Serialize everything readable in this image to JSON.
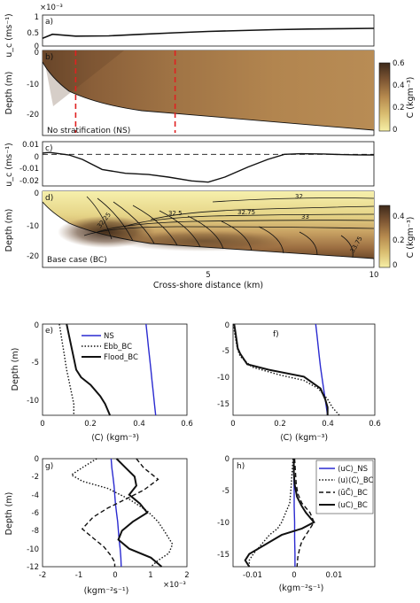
{
  "chart_data": [
    {
      "id": "a",
      "type": "line",
      "panel_label": "a)",
      "ylabel": "u_c (ms⁻¹)",
      "exponent_label": "×10⁻³",
      "yticks": [
        "1",
        "0.5",
        "0"
      ],
      "ylim": [
        0,
        1.0
      ],
      "xlim": [
        0,
        10
      ],
      "x": [
        0,
        0.3,
        1,
        2,
        3,
        4,
        5,
        6,
        7,
        8,
        9,
        10
      ],
      "y": [
        0.25,
        0.38,
        0.32,
        0.33,
        0.38,
        0.43,
        0.47,
        0.5,
        0.53,
        0.55,
        0.56,
        0.57
      ]
    },
    {
      "id": "b",
      "type": "heatmap",
      "panel_label": "b)",
      "ylabel": "Depth (m)",
      "yticks": [
        "0",
        "-10",
        "-20"
      ],
      "annotation": "No stratification (NS)",
      "colorbar_label": "C (kgm⁻³)",
      "colorbar_ticks": [
        "0.6",
        "0.4",
        "0.2",
        "0"
      ],
      "dashed_lines_x": [
        1.0,
        4.0
      ]
    },
    {
      "id": "c",
      "type": "line",
      "panel_label": "c)",
      "ylabel": "u_c (ms⁻¹)",
      "yticks": [
        "0.01",
        "0",
        "-0.01",
        "-0.02"
      ],
      "ylim": [
        -0.025,
        0.01
      ],
      "xlim": [
        0,
        10
      ],
      "x": [
        0,
        0.2,
        0.5,
        0.8,
        1.2,
        1.8,
        2.5,
        3.2,
        3.8,
        4.5,
        5.0,
        5.5,
        6.2,
        6.8,
        7.3,
        7.8,
        8.5,
        9.0,
        9.5,
        10
      ],
      "y": [
        0.001,
        0.0015,
        0.0005,
        -0.0005,
        -0.004,
        -0.012,
        -0.015,
        -0.016,
        -0.018,
        -0.021,
        -0.022,
        -0.018,
        -0.01,
        -0.004,
        0.0,
        0.0005,
        0.0003,
        -0.0002,
        -0.0004,
        -0.0005
      ]
    },
    {
      "id": "d",
      "type": "heatmap",
      "panel_label": "d)",
      "ylabel": "Depth (m)",
      "xlabel": "Cross-shore distance (km)",
      "xticks": [
        "5",
        "10"
      ],
      "yticks": [
        "0",
        "-10",
        "-20"
      ],
      "annotation": "Base case (BC)",
      "colorbar_label": "C (kgm⁻³)",
      "colorbar_ticks": [
        "0.4",
        "0.2",
        "0"
      ],
      "contour_labels": [
        "32",
        "32.5",
        "32.75",
        "33",
        "32.25",
        "33.75"
      ]
    },
    {
      "id": "e",
      "type": "line",
      "panel_label": "e)",
      "xlabel": "⟨C⟩ (kgm⁻³)",
      "ylabel": "Depth (m)",
      "xlim": [
        0,
        0.6
      ],
      "ylim": [
        -12,
        0
      ],
      "xticks": [
        "0",
        "0.2",
        "0.4",
        "0.6"
      ],
      "yticks": [
        "0",
        "-5",
        "-10"
      ],
      "series": [
        {
          "name": "NS",
          "style": "solid",
          "color": "#2a2ad0",
          "x": [
            0.43,
            0.435,
            0.44,
            0.445,
            0.45,
            0.455,
            0.46,
            0.465,
            0.47
          ],
          "y": [
            0,
            -1.5,
            -3,
            -4.5,
            -6,
            -7.5,
            -9,
            -10.5,
            -12
          ]
        },
        {
          "name": "Ebb_BC",
          "style": "dotted",
          "color": "#111111",
          "x": [
            0.07,
            0.075,
            0.08,
            0.085,
            0.09,
            0.095,
            0.1,
            0.11,
            0.12,
            0.13,
            0.13
          ],
          "y": [
            0,
            -1,
            -2,
            -3,
            -4,
            -5,
            -6,
            -7.5,
            -9,
            -10.5,
            -12
          ]
        },
        {
          "name": "Flood_BC",
          "style": "solid-thick",
          "color": "#111111",
          "x": [
            0.1,
            0.11,
            0.12,
            0.13,
            0.14,
            0.16,
            0.2,
            0.24,
            0.26,
            0.28
          ],
          "y": [
            0,
            -1.5,
            -3,
            -4.5,
            -6,
            -7,
            -8,
            -9.5,
            -10.5,
            -12
          ]
        }
      ]
    },
    {
      "id": "f",
      "type": "line",
      "panel_label": "f)",
      "xlabel": "⟨C⟩ (kgm⁻³)",
      "xlim": [
        0,
        0.6
      ],
      "ylim": [
        -17,
        0
      ],
      "xticks": [
        "0",
        "0.2",
        "0.4",
        "0.6"
      ],
      "yticks": [
        "0",
        "-5",
        "-10",
        "-15"
      ],
      "series": [
        {
          "name": "NS",
          "style": "solid",
          "color": "#2a2ad0",
          "x": [
            0.35,
            0.355,
            0.36,
            0.365,
            0.37,
            0.38,
            0.39,
            0.4
          ],
          "y": [
            0,
            -2,
            -4,
            -6,
            -8,
            -11,
            -14,
            -17
          ]
        },
        {
          "name": "Ebb_BC",
          "style": "dotted",
          "color": "#111111",
          "x": [
            0.002,
            0.006,
            0.012,
            0.018,
            0.03,
            0.08,
            0.2,
            0.3,
            0.36,
            0.4,
            0.42,
            0.45
          ],
          "y": [
            0,
            -1.5,
            -3,
            -4.5,
            -6,
            -8,
            -9.5,
            -10.5,
            -12,
            -14,
            -15.5,
            -17
          ]
        },
        {
          "name": "Flood_BC",
          "style": "solid-thick",
          "color": "#111111",
          "x": [
            0.005,
            0.01,
            0.015,
            0.02,
            0.03,
            0.06,
            0.15,
            0.3,
            0.37,
            0.39,
            0.4,
            0.4
          ],
          "y": [
            0,
            -1.5,
            -3,
            -4.5,
            -5.5,
            -7.5,
            -8.5,
            -9.8,
            -12,
            -14,
            -15.5,
            -17
          ]
        }
      ]
    },
    {
      "id": "g",
      "type": "line",
      "panel_label": "g)",
      "xlabel": "(kgm⁻²s⁻¹)",
      "ylabel": "Depth (m)",
      "exponent_label": "×10⁻³",
      "xlim": [
        -2,
        2
      ],
      "ylim": [
        -12,
        0
      ],
      "xticks": [
        "-2",
        "-1",
        "0",
        "1",
        "2"
      ],
      "yticks": [
        "0",
        "-2",
        "-4",
        "-6",
        "-8",
        "-10",
        "-12"
      ],
      "series": [
        {
          "name": "⟨uC⟩_NS",
          "style": "solid",
          "color": "#2a2ad0",
          "x": [
            -0.1,
            -0.08,
            -0.05,
            -0.02,
            0.0,
            0.02,
            0.05,
            0.08,
            0.1,
            0.12,
            0.15,
            0.17,
            0.18
          ],
          "y": [
            0,
            -1,
            -2,
            -3,
            -4,
            -5,
            -6,
            -7,
            -8,
            -9,
            -10,
            -11,
            -12
          ]
        },
        {
          "name": "⟨u⟩⟨C⟩_BC",
          "style": "dotted",
          "color": "#111111",
          "x": [
            -0.5,
            -0.9,
            -1.2,
            -0.9,
            -0.2,
            0.4,
            0.9,
            1.2,
            1.4,
            1.6,
            1.5,
            1.2,
            1.0
          ],
          "y": [
            0,
            -1,
            -1.8,
            -2.5,
            -3.3,
            -4.5,
            -5.8,
            -7,
            -8.2,
            -9.5,
            -10.5,
            -11.3,
            -12
          ]
        },
        {
          "name": "⟨ũC̃⟩_BC",
          "style": "dashed",
          "color": "#111111",
          "x": [
            0.6,
            0.8,
            1.2,
            0.8,
            0.3,
            -0.2,
            -0.6,
            -0.9,
            -0.6,
            -0.3,
            -0.1,
            0.0,
            0.0
          ],
          "y": [
            0,
            -1,
            -2.3,
            -3.5,
            -4.5,
            -5.5,
            -6.5,
            -7.8,
            -8.8,
            -9.8,
            -10.8,
            -11.5,
            -12
          ]
        },
        {
          "name": "⟨uC⟩_BC",
          "style": "solid-thick",
          "color": "#111111",
          "x": [
            0.05,
            0.3,
            0.55,
            0.6,
            0.4,
            0.7,
            0.9,
            0.5,
            0.2,
            0.1,
            0.4,
            1.0,
            1.3
          ],
          "y": [
            0,
            -1,
            -2,
            -3,
            -4,
            -5,
            -6,
            -7,
            -8,
            -9,
            -10,
            -11,
            -12
          ]
        }
      ]
    },
    {
      "id": "h",
      "type": "line",
      "panel_label": "h)",
      "xlabel": "(kgm⁻²s⁻¹)",
      "xlim": [
        -0.015,
        0.02
      ],
      "ylim": [
        -17,
        0
      ],
      "xticks": [
        "-0.01",
        "0",
        "0.01"
      ],
      "yticks": [
        "0",
        "-5",
        "-10",
        "-15"
      ],
      "legend": {
        "position": "top-right",
        "entries": [
          "⟨uC⟩_NS",
          "⟨u⟩⟨C⟩_BC",
          "⟨ũC̃⟩_BC",
          "⟨uC⟩_BC"
        ]
      },
      "series": [
        {
          "name": "⟨uC⟩_NS",
          "style": "solid",
          "color": "#2a2ad0",
          "x": [
            0.0,
            0.0,
            0.0001,
            0.0001,
            0.0002,
            0.0002,
            0.0003,
            0.0003
          ],
          "y": [
            0,
            -2.5,
            -5,
            -7.5,
            -10,
            -12.5,
            -15,
            -17
          ]
        },
        {
          "name": "⟨u⟩⟨C⟩_BC",
          "style": "dotted",
          "color": "#111111",
          "x": [
            -0.0002,
            -0.0004,
            -0.0006,
            -0.0008,
            -0.001,
            -0.002,
            -0.003,
            -0.004,
            -0.006,
            -0.008,
            -0.01,
            -0.011,
            -0.011
          ],
          "y": [
            0,
            -2,
            -4,
            -5.5,
            -7,
            -8.5,
            -10,
            -11,
            -12,
            -13.5,
            -15,
            -16,
            -17
          ]
        },
        {
          "name": "⟨ũC̃⟩_BC",
          "style": "dashed",
          "color": "#111111",
          "x": [
            0.0002,
            0.0004,
            0.0006,
            0.001,
            0.002,
            0.004,
            0.005,
            0.004,
            0.003,
            0.002,
            0.0015,
            0.001,
            0.0008
          ],
          "y": [
            0,
            -2,
            -4,
            -5.5,
            -7,
            -8.5,
            -10,
            -11,
            -12,
            -13,
            -14,
            -15.5,
            -17
          ]
        },
        {
          "name": "⟨uC⟩_BC",
          "style": "solid-thick",
          "color": "#111111",
          "x": [
            0.0,
            0.0,
            0.0002,
            0.0008,
            0.002,
            0.003,
            0.005,
            0.002,
            -0.003,
            -0.007,
            -0.011,
            -0.012,
            -0.011
          ],
          "y": [
            0,
            -2,
            -4,
            -6,
            -7.5,
            -8.5,
            -10,
            -11,
            -12,
            -13.5,
            -15,
            -16,
            -17
          ]
        }
      ]
    }
  ]
}
